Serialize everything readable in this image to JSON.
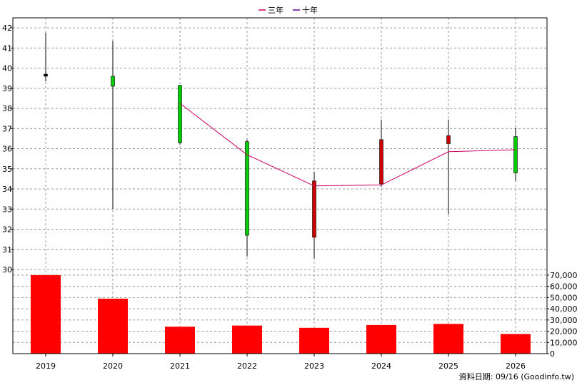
{
  "chart_data": {
    "type": "candlestick",
    "categories": [
      "2019",
      "2020",
      "2021",
      "2022",
      "2023",
      "2024",
      "2025",
      "2026"
    ],
    "legend": [
      {
        "name": "三年",
        "color": "#cc0066"
      },
      {
        "name": "十年",
        "color": "#660099"
      }
    ],
    "price_axis": {
      "ylim": [
        30,
        42.5
      ],
      "ticks": [
        "30",
        "31",
        "32",
        "33",
        "34",
        "35",
        "36",
        "37",
        "38",
        "39",
        "40",
        "41",
        "42"
      ]
    },
    "volume_axis": {
      "ylim": [
        0,
        75000
      ],
      "ticks": [
        "0",
        "10,000",
        "20,000",
        "30,000",
        "40,000",
        "50,000",
        "60,000",
        "70,000"
      ]
    },
    "candles": [
      {
        "year": "2019",
        "open": 39.6,
        "close": 39.7,
        "high": 41.75,
        "low": 39.35,
        "color": "#000000"
      },
      {
        "year": "2020",
        "open": 39.1,
        "close": 39.6,
        "high": 41.35,
        "low": 33.0,
        "color": "#00cc00"
      },
      {
        "year": "2021",
        "open": 36.3,
        "close": 39.15,
        "high": 39.15,
        "low": 36.2,
        "color": "#00cc00"
      },
      {
        "year": "2022",
        "open": 31.7,
        "close": 36.35,
        "high": 36.45,
        "low": 30.65,
        "color": "#00cc00"
      },
      {
        "year": "2023",
        "open": 34.4,
        "close": 31.6,
        "high": 34.85,
        "low": 30.55,
        "color": "#cc0000"
      },
      {
        "year": "2024",
        "open": 36.45,
        "close": 34.25,
        "high": 37.45,
        "low": 34.1,
        "color": "#cc0000"
      },
      {
        "year": "2025",
        "open": 36.65,
        "close": 36.25,
        "high": 37.45,
        "low": 32.75,
        "color": "#cc0000"
      },
      {
        "year": "2026",
        "open": 34.8,
        "close": 36.6,
        "high": 37.05,
        "low": 34.4,
        "color": "#00cc00"
      }
    ],
    "series": [
      {
        "name": "三年",
        "x": [
          "2021",
          "2022",
          "2023",
          "2024",
          "2025",
          "2026"
        ],
        "values": [
          38.25,
          35.7,
          34.15,
          34.2,
          35.85,
          35.95
        ]
      }
    ],
    "volume": [
      70000,
      49000,
      24000,
      25000,
      23000,
      25500,
      26500,
      17500
    ],
    "footer": "資料日期: 09/16 (Goodinfo.tw)"
  }
}
